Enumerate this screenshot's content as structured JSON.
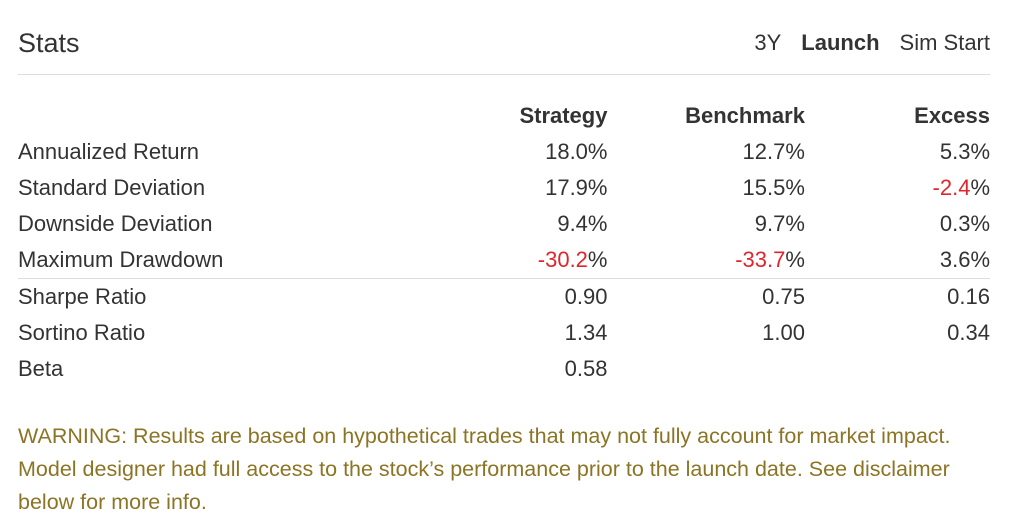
{
  "title": "Stats",
  "tabs": [
    {
      "label": "3Y",
      "active": false
    },
    {
      "label": "Launch",
      "active": true
    },
    {
      "label": "Sim Start",
      "active": false
    }
  ],
  "columns": [
    "Strategy",
    "Benchmark",
    "Excess"
  ],
  "rows": [
    {
      "label": "Annualized Return",
      "values": [
        {
          "n": "18.0",
          "s": "%",
          "neg": false
        },
        {
          "n": "12.7",
          "s": "%",
          "neg": false
        },
        {
          "n": "5.3",
          "s": "%",
          "neg": false
        }
      ]
    },
    {
      "label": "Standard Deviation",
      "values": [
        {
          "n": "17.9",
          "s": "%",
          "neg": false
        },
        {
          "n": "15.5",
          "s": "%",
          "neg": false
        },
        {
          "n": "-2.4",
          "s": "%",
          "neg": true
        }
      ]
    },
    {
      "label": "Downside Deviation",
      "values": [
        {
          "n": "9.4",
          "s": "%",
          "neg": false
        },
        {
          "n": "9.7",
          "s": "%",
          "neg": false
        },
        {
          "n": "0.3",
          "s": "%",
          "neg": false
        }
      ]
    },
    {
      "label": "Maximum Drawdown",
      "values": [
        {
          "n": "-30.2",
          "s": "%",
          "neg": true
        },
        {
          "n": "-33.7",
          "s": "%",
          "neg": true
        },
        {
          "n": "3.6",
          "s": "%",
          "neg": false
        }
      ]
    },
    {
      "label": "Sharpe Ratio",
      "sep": true,
      "values": [
        {
          "n": "0.90",
          "s": "",
          "neg": false
        },
        {
          "n": "0.75",
          "s": "",
          "neg": false
        },
        {
          "n": "0.16",
          "s": "",
          "neg": false
        }
      ]
    },
    {
      "label": "Sortino Ratio",
      "values": [
        {
          "n": "1.34",
          "s": "",
          "neg": false
        },
        {
          "n": "1.00",
          "s": "",
          "neg": false
        },
        {
          "n": "0.34",
          "s": "",
          "neg": false
        }
      ]
    },
    {
      "label": "Beta",
      "values": [
        {
          "n": "0.58",
          "s": "",
          "neg": false
        },
        {
          "n": "",
          "s": "",
          "neg": false
        },
        {
          "n": "",
          "s": "",
          "neg": false
        }
      ]
    }
  ],
  "warning": "WARNING: Results are based on hypothetical trades that may not fully account for market impact. Model designer had full access to the stock’s performance prior to the launch date. See disclaimer below for more info.",
  "colors": {
    "negative": "#e0262b",
    "warning": "#8c7425"
  }
}
